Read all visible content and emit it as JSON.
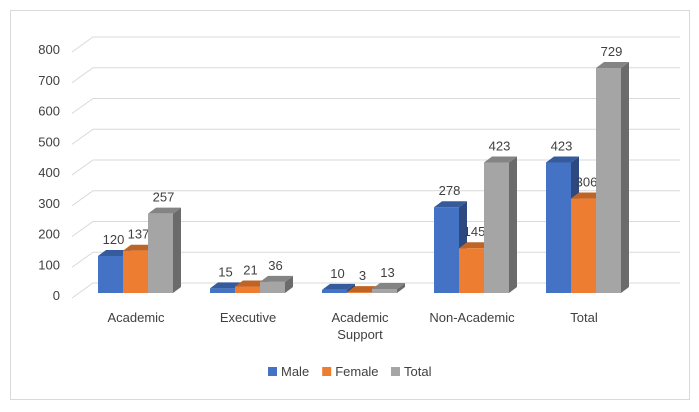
{
  "chart_data": {
    "type": "bar",
    "title": "",
    "xlabel": "",
    "ylabel": "",
    "ylim": [
      0,
      800
    ],
    "yticks": [
      "0",
      "100",
      "200",
      "300",
      "400",
      "500",
      "600",
      "700",
      "800"
    ],
    "categories": [
      [
        "Academic"
      ],
      [
        "Executive"
      ],
      [
        "Academic",
        "Support"
      ],
      [
        "Non-Academic"
      ],
      [
        "Total"
      ]
    ],
    "series": [
      {
        "name": "Male",
        "color": "#4472c4",
        "values": [
          120,
          15,
          10,
          278,
          423
        ]
      },
      {
        "name": "Female",
        "color": "#ed7d31",
        "values": [
          137,
          21,
          3,
          145,
          306
        ]
      },
      {
        "name": "Total",
        "color": "#a5a5a5",
        "values": [
          257,
          36,
          13,
          423,
          729
        ]
      }
    ],
    "grid": true,
    "legend": "bottom",
    "style": "3d-clustered-column"
  }
}
